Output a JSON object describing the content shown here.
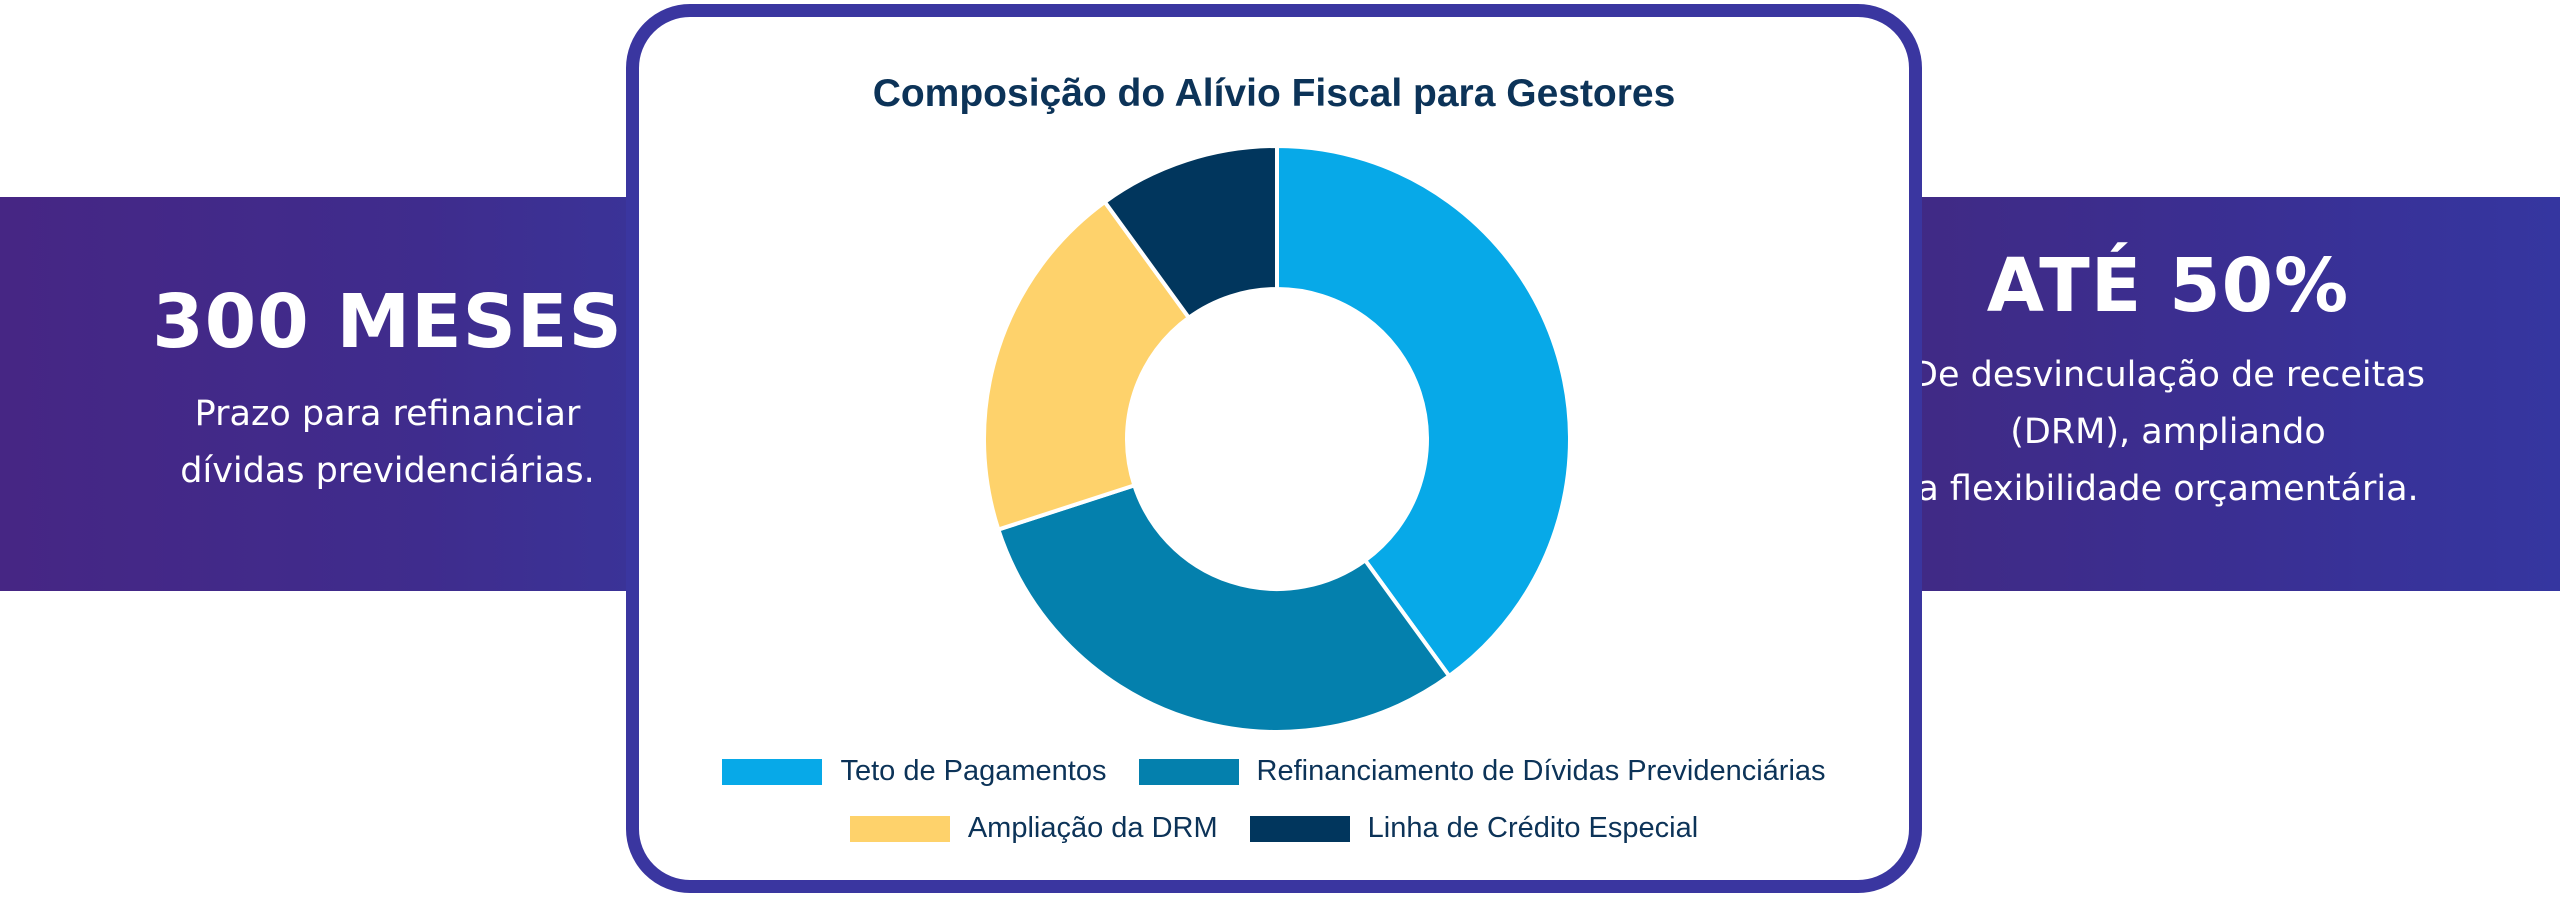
{
  "left_panel": {
    "headline": "300 MESES",
    "lines": [
      "Prazo para refinanciar",
      "dívidas previdenciárias."
    ]
  },
  "right_panel": {
    "headline": "ATÉ 50%",
    "lines": [
      "De desvinculação de receitas",
      "(DRM), ampliando",
      "a flexibilidade orçamentária."
    ]
  },
  "chart_data": {
    "type": "pie",
    "title": "Composição do Alívio Fiscal para Gestores",
    "donut": true,
    "legend_position": "bottom",
    "categories": [
      "Teto de Pagamentos",
      "Refinanciamento de Dívidas Previdenciárias",
      "Ampliação da DRM",
      "Linha de Crédito Especial"
    ],
    "values": [
      40,
      30,
      20,
      10
    ],
    "colors": [
      "#07a9e8",
      "#0480ad",
      "#fed26b",
      "#01365d"
    ]
  }
}
